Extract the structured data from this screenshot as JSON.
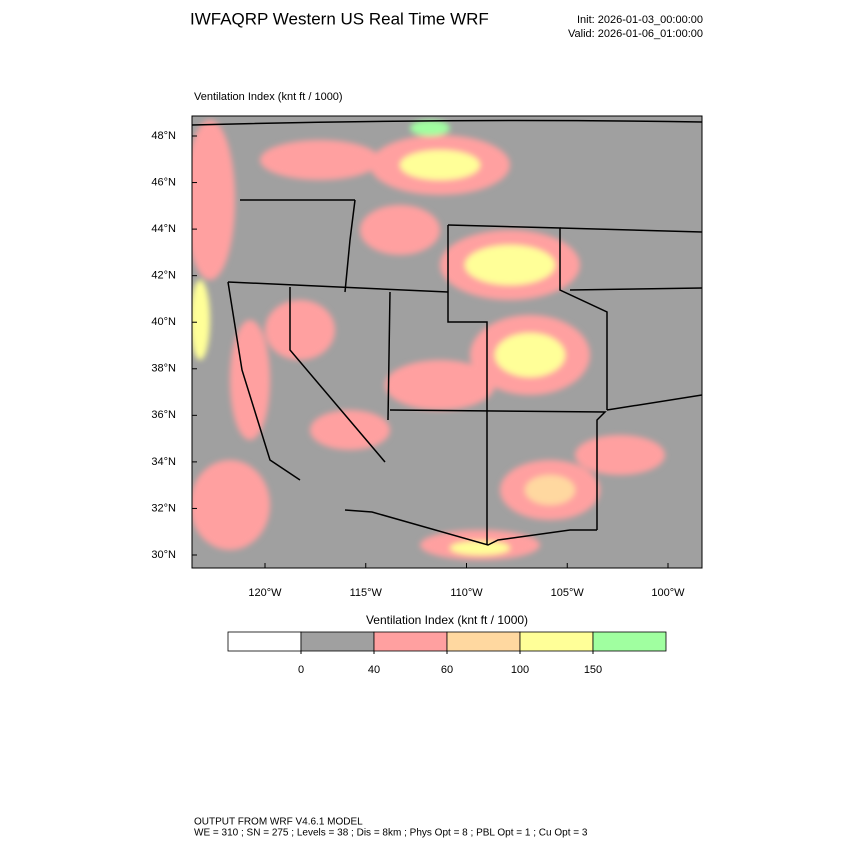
{
  "header": {
    "title": "IWFAQRP Western US Real Time WRF",
    "init": "Init: 2026-01-03_00:00:00",
    "valid": "Valid: 2026-01-06_01:00:00"
  },
  "map": {
    "field_label": "Ventilation Index   (knt ft / 1000)",
    "lat_ticks": [
      {
        "value": 48,
        "label": "48°N"
      },
      {
        "value": 46,
        "label": "46°N"
      },
      {
        "value": 44,
        "label": "44°N"
      },
      {
        "value": 42,
        "label": "42°N"
      },
      {
        "value": 40,
        "label": "40°N"
      },
      {
        "value": 38,
        "label": "38°N"
      },
      {
        "value": 36,
        "label": "36°N"
      },
      {
        "value": 34,
        "label": "34°N"
      },
      {
        "value": 32,
        "label": "32°N"
      },
      {
        "value": 30,
        "label": "30°N"
      }
    ],
    "lon_ticks": [
      {
        "value": -120,
        "label": "120°W"
      },
      {
        "value": -115,
        "label": "115°W"
      },
      {
        "value": -110,
        "label": "110°W"
      },
      {
        "value": -105,
        "label": "105°W"
      },
      {
        "value": -100,
        "label": "100°W"
      }
    ]
  },
  "colorbar": {
    "title": "Ventilation Index   (knt ft / 1000)",
    "levels": [
      0,
      40,
      60,
      100,
      150
    ],
    "colors": [
      "#ffffff",
      "#a0a0a0",
      "#ffa0a0",
      "#ffd8a0",
      "#ffff98",
      "#a0ffa0"
    ]
  },
  "footer": {
    "lines": [
      "OUTPUT FROM WRF V4.6.1 MODEL",
      "WE = 310 ; SN = 275 ; Levels = 38 ; Dis = 8km ; Phys Opt = 8 ; PBL Opt = 1 ; Cu Opt = 3"
    ]
  }
}
